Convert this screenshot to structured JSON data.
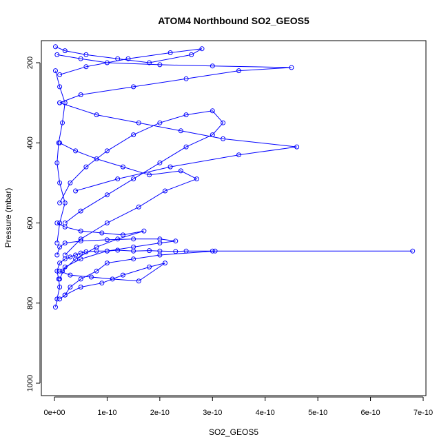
{
  "chart_data": {
    "type": "line",
    "title": "ATOM4 Northbound SO2_GEOS5",
    "xlabel": "SO2_GEOS5",
    "ylabel": "Pressure (mbar)",
    "xlim": [
      0,
      7e-10
    ],
    "ylim": [
      1000,
      150
    ],
    "y_inverted": true,
    "grid": false,
    "marker": "open-circle",
    "color": "#0000ff",
    "x_ticks": [
      0,
      1e-10,
      2e-10,
      3e-10,
      4e-10,
      5e-10,
      6e-10,
      7e-10
    ],
    "x_tick_labels": [
      "0e+00",
      "1e-10",
      "2e-10",
      "3e-10",
      "4e-10",
      "5e-10",
      "6e-10",
      "7e-10"
    ],
    "y_ticks": [
      200,
      400,
      600,
      800,
      1000
    ],
    "y_tick_labels": [
      "200",
      "400",
      "600",
      "800",
      "1000"
    ],
    "series": [
      {
        "x": [
          2e-12,
          5e-12,
          1e-11,
          8e-12,
          5e-12,
          1e-11,
          2e-11,
          3e-11,
          4e-11,
          5e-11,
          6e-11,
          8e-11,
          1e-10,
          1.2e-10,
          1.5e-10,
          1.8e-10,
          2e-10,
          2.3e-10,
          2.5e-10,
          3e-10,
          6.8e-10,
          3.05e-10,
          2e-10,
          1.5e-10,
          1e-10,
          8e-11,
          5e-11,
          3e-11,
          2e-11,
          1e-11
        ],
        "y": [
          810,
          790,
          760,
          740,
          720,
          700,
          690,
          685,
          680,
          675,
          672,
          670,
          670,
          668,
          670,
          669,
          670,
          671,
          670,
          670,
          670,
          670,
          680,
          690,
          700,
          720,
          740,
          760,
          780,
          790
        ]
      },
      {
        "x": [
          5e-12,
          1e-11,
          2e-11,
          5e-11,
          1e-10,
          1.5e-10,
          2e-10,
          2.3e-10,
          2e-10,
          1.5e-10,
          1e-10,
          5e-11,
          2e-11,
          1e-11
        ],
        "y": [
          680,
          660,
          650,
          645,
          642,
          640,
          640,
          645,
          650,
          660,
          670,
          690,
          710,
          740
        ]
      },
      {
        "x": [
          1e-11,
          3e-11,
          6e-11,
          1e-10,
          1.5e-10,
          2e-10,
          2.5e-10,
          3e-10,
          3.2e-10,
          3e-10,
          2.5e-10,
          2e-10,
          1.5e-10,
          1e-10,
          5e-11,
          2e-11
        ],
        "y": [
          550,
          500,
          460,
          420,
          380,
          350,
          330,
          320,
          350,
          380,
          410,
          450,
          490,
          530,
          570,
          600
        ]
      },
      {
        "x": [
          5e-12,
          5e-11,
          1e-10,
          2e-10,
          3e-10,
          4.5e-10,
          3.5e-10,
          2.5e-10,
          1.5e-10,
          5e-11,
          1e-11
        ],
        "y": [
          180,
          190,
          200,
          205,
          208,
          212,
          220,
          240,
          260,
          280,
          300
        ]
      },
      {
        "x": [
          1e-11,
          8e-11,
          1.6e-10,
          2.4e-10,
          3.2e-10,
          4.6e-10,
          3.5e-10,
          2.2e-10,
          1.2e-10,
          4e-11
        ],
        "y": [
          300,
          330,
          350,
          370,
          390,
          410,
          430,
          460,
          490,
          520
        ]
      },
      {
        "x": [
          2e-12,
          2e-11,
          6e-11,
          1.2e-10,
          1.8e-10,
          2.6e-10,
          2.8e-10,
          2.2e-10,
          1.4e-10,
          6e-11,
          1e-11
        ],
        "y": [
          160,
          170,
          180,
          190,
          200,
          180,
          165,
          175,
          190,
          210,
          230
        ]
      },
      {
        "x": [
          1e-11,
          4e-11,
          8e-11,
          1.3e-10,
          1.8e-10,
          2.4e-10,
          2.7e-10,
          2.1e-10,
          1.6e-10,
          1e-10,
          5e-11,
          2e-11
        ],
        "y": [
          400,
          420,
          440,
          460,
          480,
          470,
          490,
          520,
          560,
          600,
          640,
          680
        ]
      },
      {
        "x": [
          1e-11,
          3e-11,
          7e-11,
          1.1e-10,
          1.6e-10,
          2.1e-10,
          1.8e-10,
          1.3e-10,
          9e-11,
          5e-11,
          2e-11
        ],
        "y": [
          720,
          730,
          735,
          740,
          745,
          700,
          710,
          730,
          750,
          760,
          780
        ]
      },
      {
        "x": [
          5e-12,
          2e-11,
          5e-11,
          9e-11,
          1.3e-10,
          1.7e-10,
          1.2e-10,
          8e-11,
          4e-11,
          1.5e-11
        ],
        "y": [
          600,
          610,
          620,
          625,
          630,
          620,
          640,
          660,
          690,
          720
        ]
      },
      {
        "x": [
          2e-12,
          1e-11,
          2e-11,
          1.5e-11,
          8e-12,
          5e-12,
          1e-11,
          2e-11,
          1e-11,
          5e-12
        ],
        "y": [
          220,
          260,
          300,
          350,
          400,
          450,
          500,
          550,
          600,
          650
        ]
      }
    ]
  }
}
